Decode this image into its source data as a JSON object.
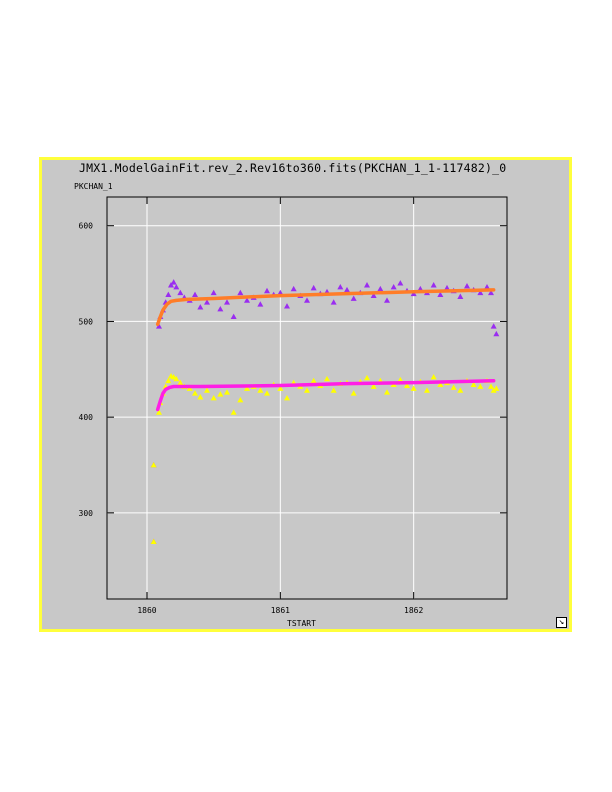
{
  "window": {
    "title": "JMX1.ModelGainFit.rev_2.Rev16to360.fits(PKCHAN_1_1-117482)_0"
  },
  "colors": {
    "frame": "#ffff3c",
    "background": "#c8c8c8",
    "grid": "#ffffff",
    "series_upper_data": "#9a2df0",
    "series_upper_fit": "#ff7d28",
    "series_lower_data": "#ffff00",
    "series_lower_fit": "#ff1ee6"
  },
  "chart_data": {
    "type": "scatter",
    "xlabel": "TSTART",
    "ylabel": "PKCHAN_1",
    "xlim": [
      1859.7,
      1862.7
    ],
    "ylim": [
      210,
      630
    ],
    "xticks": [
      1860,
      1861,
      1862
    ],
    "yticks": [
      300,
      400,
      500,
      600
    ],
    "xtick_labels": [
      "1860",
      "1861",
      "1862"
    ],
    "ytick_labels": [
      "300",
      "400",
      "500",
      "600"
    ],
    "grid": true,
    "series": [
      {
        "kind": "markers",
        "marker": "triangle",
        "color": "#9a2df0",
        "x": [
          1860.05,
          1860.09,
          1860.1,
          1860.12,
          1860.14,
          1860.16,
          1860.18,
          1860.2,
          1860.22,
          1860.25,
          1860.28,
          1860.32,
          1860.36,
          1860.4,
          1860.45,
          1860.5,
          1860.55,
          1860.6,
          1860.65,
          1860.7,
          1860.75,
          1860.8,
          1860.85,
          1860.9,
          1860.95,
          1861.0,
          1861.05,
          1861.1,
          1861.15,
          1861.2,
          1861.25,
          1861.3,
          1861.35,
          1861.4,
          1861.45,
          1861.5,
          1861.55,
          1861.6,
          1861.65,
          1861.7,
          1861.75,
          1861.8,
          1861.85,
          1861.9,
          1861.95,
          1862.0,
          1862.05,
          1862.1,
          1862.15,
          1862.2,
          1862.25,
          1862.3,
          1862.35,
          1862.4,
          1862.45,
          1862.5,
          1862.55,
          1862.58,
          1862.6,
          1862.62
        ],
        "y": [
          350,
          495,
          505,
          512,
          520,
          528,
          538,
          541,
          536,
          530,
          525,
          522,
          528,
          515,
          520,
          530,
          513,
          520,
          505,
          530,
          522,
          525,
          518,
          532,
          528,
          530,
          516,
          534,
          527,
          522,
          535,
          529,
          531,
          520,
          536,
          533,
          524,
          530,
          538,
          527,
          534,
          522,
          536,
          540,
          532,
          529,
          534,
          530,
          538,
          528,
          535,
          532,
          526,
          537,
          533,
          530,
          536,
          530,
          495,
          487
        ],
        "extra_points": {
          "x": [
            1860.05
          ],
          "y": [
            270
          ]
        }
      },
      {
        "kind": "line",
        "color": "#ff7d28",
        "x": [
          1860.08,
          1860.1,
          1860.12,
          1860.15,
          1860.18,
          1860.22,
          1860.3,
          1860.5,
          1861.0,
          1861.5,
          1862.0,
          1862.6
        ],
        "y": [
          497,
          505,
          512,
          518,
          521,
          522,
          523,
          524,
          527,
          529,
          531,
          533
        ]
      },
      {
        "kind": "markers",
        "marker": "triangle",
        "color": "#ffff00",
        "x": [
          1860.05,
          1860.09,
          1860.1,
          1860.12,
          1860.14,
          1860.16,
          1860.18,
          1860.2,
          1860.22,
          1860.25,
          1860.28,
          1860.32,
          1860.36,
          1860.4,
          1860.45,
          1860.5,
          1860.55,
          1860.6,
          1860.65,
          1860.7,
          1860.75,
          1860.8,
          1860.85,
          1860.9,
          1860.95,
          1861.0,
          1861.05,
          1861.1,
          1861.15,
          1861.2,
          1861.25,
          1861.3,
          1861.35,
          1861.4,
          1861.45,
          1861.5,
          1861.55,
          1861.6,
          1861.65,
          1861.7,
          1861.75,
          1861.8,
          1861.85,
          1861.9,
          1861.95,
          1862.0,
          1862.05,
          1862.1,
          1862.15,
          1862.2,
          1862.25,
          1862.3,
          1862.35,
          1862.4,
          1862.45,
          1862.5,
          1862.55,
          1862.58,
          1862.6,
          1862.62
        ],
        "y": [
          350,
          405,
          415,
          425,
          432,
          438,
          443,
          442,
          440,
          436,
          432,
          430,
          425,
          421,
          428,
          420,
          424,
          426,
          405,
          418,
          430,
          432,
          428,
          425,
          434,
          430,
          420,
          436,
          432,
          428,
          438,
          433,
          440,
          428,
          435,
          436,
          425,
          437,
          441,
          432,
          438,
          426,
          434,
          439,
          433,
          430,
          437,
          428,
          442,
          434,
          436,
          431,
          428,
          438,
          434,
          432,
          438,
          432,
          428,
          430
        ],
        "extra_points": {
          "x": [
            1860.05
          ],
          "y": [
            270
          ]
        }
      },
      {
        "kind": "line",
        "color": "#ff1ee6",
        "x": [
          1860.08,
          1860.1,
          1860.12,
          1860.14,
          1860.17,
          1860.2,
          1860.25,
          1860.4,
          1861.0,
          1861.5,
          1862.0,
          1862.6
        ],
        "y": [
          408,
          417,
          425,
          429,
          431,
          432,
          432,
          432,
          433,
          435,
          436,
          438
        ]
      }
    ]
  }
}
